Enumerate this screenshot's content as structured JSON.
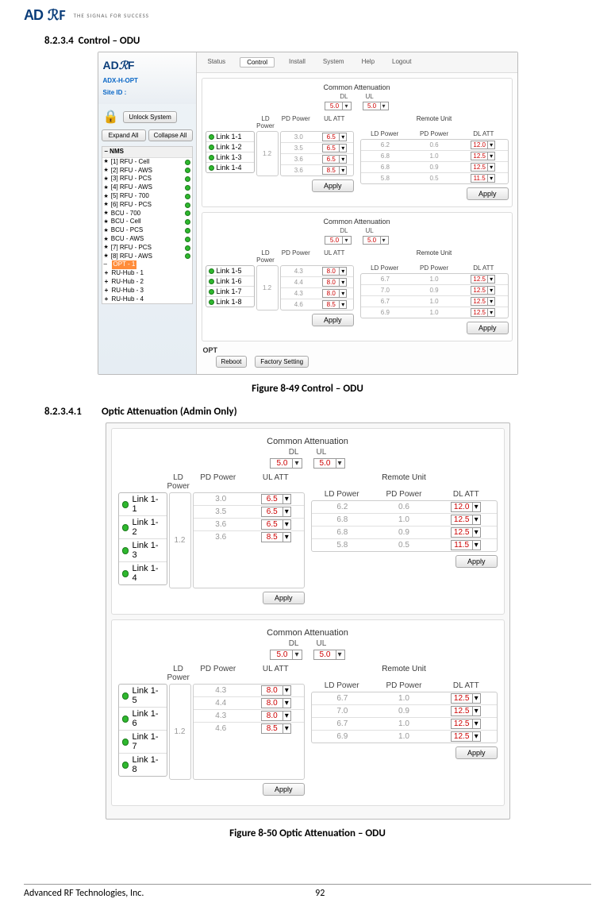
{
  "header": {
    "tagline": "THE SIGNAL FOR SUCCESS"
  },
  "section1": {
    "num": "8.2.3.4",
    "title": "Control – ODU"
  },
  "figure1": "Figure 8-49   Control – ODU",
  "section2": {
    "num": "8.2.3.4.1",
    "title": "Optic Attenuation (Admin Only)"
  },
  "figure2": "Figure 8-50   Optic Attenuation – ODU",
  "footer": {
    "company": "Advanced RF Technologies, Inc.",
    "page": "92"
  },
  "ui": {
    "tabs": [
      "Status",
      "Control",
      "Install",
      "System",
      "Help",
      "Logout"
    ],
    "activeTab": "Control",
    "siteHdr": "ADX-H-OPT",
    "siteId": "Site ID :",
    "unlock": "Unlock System",
    "expand": "Expand All",
    "collapse": "Collapse All",
    "treeHdr": "NMS",
    "tree": [
      {
        "t": "star",
        "label": "[1] RFU - Cell",
        "dot": true
      },
      {
        "t": "star",
        "label": "[2] RFU - AWS",
        "dot": true
      },
      {
        "t": "star",
        "label": "[3] RFU - PCS",
        "dot": true
      },
      {
        "t": "star",
        "label": "[4] RFU - AWS",
        "dot": true
      },
      {
        "t": "star",
        "label": "[5] RFU - 700",
        "dot": true
      },
      {
        "t": "star",
        "label": "[6] RFU - PCS",
        "dot": true
      },
      {
        "t": "star",
        "label": "BCU - 700",
        "dot": true
      },
      {
        "t": "star",
        "label": "BCU - Cell",
        "dot": true
      },
      {
        "t": "star",
        "label": "BCU - PCS",
        "dot": true
      },
      {
        "t": "star",
        "label": "BCU - AWS",
        "dot": true
      },
      {
        "t": "star",
        "label": "[7] RFU - PCS",
        "dot": true
      },
      {
        "t": "star",
        "label": "[8] RFU - AWS",
        "dot": true
      },
      {
        "t": "opt",
        "label": "OPT - 1"
      },
      {
        "t": "plus",
        "label": "RU-Hub - 1"
      },
      {
        "t": "plus",
        "label": "RU-Hub - 2"
      },
      {
        "t": "plus",
        "label": "RU-Hub - 3"
      },
      {
        "t": "plus",
        "label": "RU-Hub - 4"
      }
    ],
    "commonTitle": "Common Attenuation",
    "dl": "DL",
    "ul": "UL",
    "commonDL": "5.0",
    "commonUL": "5.0",
    "remoteTitle": "Remote Unit",
    "hdrL": [
      "LD Power",
      "PD Power",
      "UL ATT"
    ],
    "hdrR": [
      "LD Power",
      "PD Power",
      "DL ATT"
    ],
    "apply": "Apply",
    "optLabel": "OPT",
    "reboot": "Reboot",
    "factory": "Factory Setting",
    "block1": {
      "ld": "1.2",
      "links": [
        "Link 1-1",
        "Link 1-2",
        "Link 1-3",
        "Link 1-4"
      ],
      "pd": [
        "3.0",
        "3.5",
        "3.6",
        "3.6"
      ],
      "ulatt": [
        "6.5",
        "6.5",
        "6.5",
        "8.5"
      ],
      "rld": [
        "6.2",
        "6.8",
        "6.8",
        "5.8"
      ],
      "rpd": [
        "0.6",
        "1.0",
        "0.9",
        "0.5"
      ],
      "dlatt": [
        "12.0",
        "12.5",
        "12.5",
        "11.5"
      ]
    },
    "block2": {
      "ld": "1.2",
      "links": [
        "Link 1-5",
        "Link 1-6",
        "Link 1-7",
        "Link 1-8"
      ],
      "pd": [
        "4.3",
        "4.4",
        "4.3",
        "4.6"
      ],
      "ulatt": [
        "8.0",
        "8.0",
        "8.0",
        "8.5"
      ],
      "rld": [
        "6.7",
        "7.0",
        "6.7",
        "6.9"
      ],
      "rpd": [
        "1.0",
        "0.9",
        "1.0",
        "1.0"
      ],
      "dlatt": [
        "12.5",
        "12.5",
        "12.5",
        "12.5"
      ]
    }
  }
}
